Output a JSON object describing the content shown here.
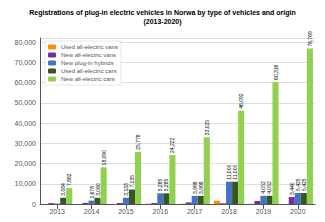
{
  "chart_data": {
    "type": "bar",
    "title": "Registrations of plug-in electric vehicles in Norwa by type of vehicles and origin\n(2013-2020)",
    "categories": [
      "2013",
      "2014",
      "2015",
      "2016",
      "2017",
      "2018",
      "2019",
      "2020"
    ],
    "series": [
      {
        "name": "Used all-electric vans",
        "color": "#FF8C00",
        "values": [
          1,
          21,
          31,
          130,
          175,
          1600,
          77,
          17
        ],
        "value_labels": [
          null,
          null,
          null,
          null,
          null,
          null,
          null,
          null
        ]
      },
      {
        "name": "New all-electric vans",
        "color": "#7030A0",
        "values": [
          448,
          559,
          502,
          457,
          762,
          350,
          1505,
          3440
        ],
        "value_labels": [
          null,
          null,
          null,
          null,
          null,
          null,
          null,
          "3,440"
        ]
      },
      {
        "name": "New plug-in hybrids",
        "color": "#4472C4",
        "values": [
          218,
          1678,
          3133,
          5285,
          3998,
          11000,
          4052,
          5425
        ],
        "value_labels": [
          null,
          "1,678",
          "3,133",
          "5,285",
          "3,998",
          "11,000",
          "4,052",
          "5,425"
        ]
      },
      {
        "name": "Used all-electric cars",
        "color": "#375623",
        "values": [
          3084,
          3060,
          7135,
          5285,
          3998,
          11000,
          4052,
          5425
        ],
        "value_labels": [
          "3,084",
          "3,060",
          "7,135",
          "5,285",
          "3,998",
          "11,000",
          "4,052",
          "5,425"
        ]
      },
      {
        "name": "New all-electric cars",
        "color": "#92D050",
        "values": [
          7882,
          18090,
          25778,
          24222,
          33025,
          46092,
          60316,
          76769
        ],
        "value_labels": [
          "7,882",
          "18,090",
          "25,778",
          "24,222",
          "33,025",
          "46,092",
          "60,316",
          "76,769"
        ]
      }
    ],
    "ylim": [
      0,
      82000
    ],
    "yticks": [
      0,
      {
        "value": 10000,
        "label": "10,000"
      },
      {
        "value": 20000,
        "label": "20,000"
      },
      {
        "value": 30000,
        "label": "30,000"
      },
      {
        "value": 40000,
        "label": "40,000"
      },
      {
        "value": 50000,
        "label": "50,000"
      },
      {
        "value": 60000,
        "label": "60,000"
      },
      {
        "value": 70000,
        "label": "70,000"
      },
      {
        "value": 80000,
        "label": "80,000"
      }
    ],
    "grid": true,
    "legend": "upper left",
    "data_labels": true
  }
}
